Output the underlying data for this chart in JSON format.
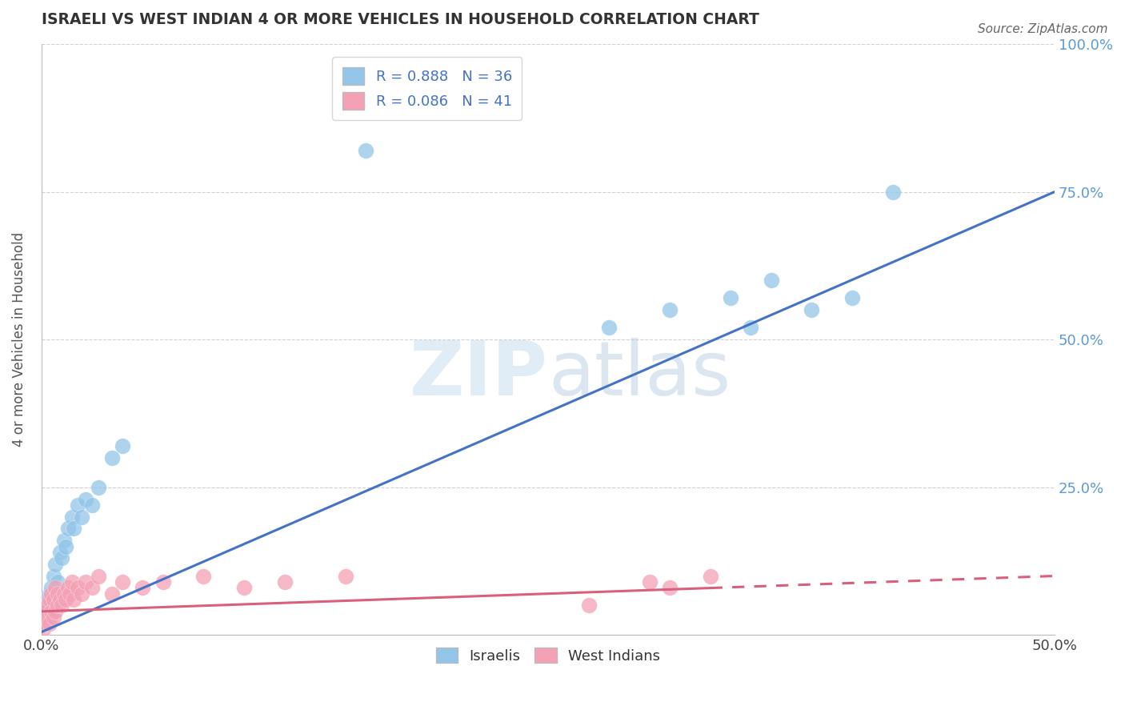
{
  "title": "ISRAELI VS WEST INDIAN 4 OR MORE VEHICLES IN HOUSEHOLD CORRELATION CHART",
  "source": "Source: ZipAtlas.com",
  "xlabel": "",
  "ylabel": "4 or more Vehicles in Household",
  "xlim": [
    0.0,
    0.5
  ],
  "ylim": [
    0.0,
    1.0
  ],
  "xticks": [
    0.0,
    0.1,
    0.2,
    0.3,
    0.4,
    0.5
  ],
  "xticklabels": [
    "0.0%",
    "",
    "",
    "",
    "",
    "50.0%"
  ],
  "ytick_positions": [
    0.0,
    0.25,
    0.5,
    0.75,
    1.0
  ],
  "yticklabels": [
    "",
    "25.0%",
    "50.0%",
    "75.0%",
    "100.0%"
  ],
  "israeli_color": "#92C5E8",
  "west_indian_color": "#F4A0B5",
  "israeli_line_color": "#4472C4",
  "west_indian_line_color": "#D9607A",
  "israeli_R": 0.888,
  "israeli_N": 36,
  "west_indian_R": 0.086,
  "west_indian_N": 41,
  "watermark": "ZIPatlas",
  "background_color": "#FFFFFF",
  "grid_color": "#CCCCCC",
  "israeli_x": [
    0.001,
    0.002,
    0.002,
    0.003,
    0.003,
    0.004,
    0.004,
    0.005,
    0.005,
    0.006,
    0.006,
    0.007,
    0.008,
    0.009,
    0.01,
    0.011,
    0.012,
    0.013,
    0.015,
    0.016,
    0.018,
    0.02,
    0.022,
    0.025,
    0.028,
    0.035,
    0.04,
    0.16,
    0.28,
    0.31,
    0.34,
    0.35,
    0.36,
    0.38,
    0.4,
    0.42
  ],
  "israeli_y": [
    0.02,
    0.03,
    0.05,
    0.04,
    0.06,
    0.03,
    0.07,
    0.08,
    0.05,
    0.1,
    0.07,
    0.12,
    0.09,
    0.14,
    0.13,
    0.16,
    0.15,
    0.18,
    0.2,
    0.18,
    0.22,
    0.2,
    0.23,
    0.22,
    0.25,
    0.3,
    0.32,
    0.82,
    0.52,
    0.55,
    0.57,
    0.52,
    0.6,
    0.55,
    0.57,
    0.75
  ],
  "west_indian_x": [
    0.001,
    0.001,
    0.002,
    0.002,
    0.003,
    0.003,
    0.004,
    0.004,
    0.005,
    0.005,
    0.006,
    0.006,
    0.007,
    0.007,
    0.008,
    0.008,
    0.009,
    0.01,
    0.011,
    0.012,
    0.013,
    0.014,
    0.015,
    0.016,
    0.018,
    0.02,
    0.022,
    0.025,
    0.028,
    0.035,
    0.04,
    0.05,
    0.06,
    0.08,
    0.1,
    0.12,
    0.15,
    0.27,
    0.3,
    0.31,
    0.33
  ],
  "west_indian_y": [
    0.01,
    0.03,
    0.02,
    0.04,
    0.03,
    0.05,
    0.02,
    0.06,
    0.04,
    0.07,
    0.03,
    0.06,
    0.04,
    0.08,
    0.05,
    0.07,
    0.06,
    0.05,
    0.07,
    0.06,
    0.08,
    0.07,
    0.09,
    0.06,
    0.08,
    0.07,
    0.09,
    0.08,
    0.1,
    0.07,
    0.09,
    0.08,
    0.09,
    0.1,
    0.08,
    0.09,
    0.1,
    0.05,
    0.09,
    0.08,
    0.1
  ],
  "israeli_line_x": [
    0.0,
    0.5
  ],
  "israeli_line_y": [
    0.005,
    0.75
  ],
  "west_indian_line_x": [
    0.0,
    0.5
  ],
  "west_indian_line_y": [
    0.04,
    0.1
  ]
}
